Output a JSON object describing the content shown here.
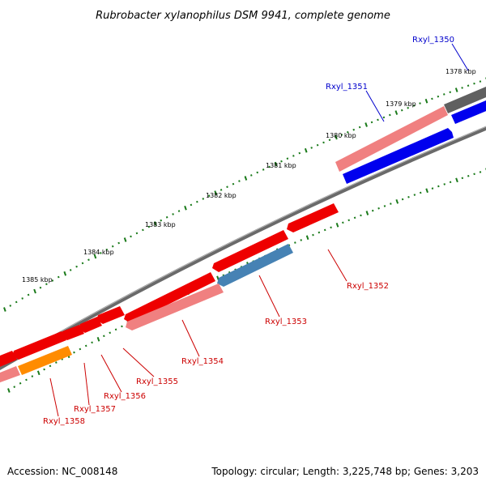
{
  "title": "Rubrobacter xylanophilus DSM 9941, complete genome",
  "footer": {
    "accession": "Accession: NC_008148",
    "summary": "Topology: circular; Length: 3,225,748 bp; Genes: 3,203"
  },
  "colors": {
    "backbone": "#707070",
    "tick": "#1a7a1a",
    "label_forward": "#0000cc",
    "label_reverse": "#cc0000"
  },
  "kbp_labels": [
    "1378 kbp",
    "1379 kbp",
    "1380 kbp",
    "1381 kbp",
    "1382 kbp",
    "1383 kbp",
    "1384 kbp",
    "1385 kbp"
  ],
  "genes": [
    {
      "id": "Rxyl_1350",
      "label": "Rxyl_1350",
      "strand": "+",
      "color": "#606060",
      "label_color": "#0000cc"
    },
    {
      "id": "Rxyl_1351",
      "label": "Rxyl_1351",
      "strand": "+",
      "color": "#0000ee",
      "label_color": "#0000cc"
    },
    {
      "id": "Rxyl_1352",
      "label": "Rxyl_1352",
      "strand": "-",
      "color": "#ee0000",
      "label_color": "#cc0000"
    },
    {
      "id": "Rxyl_1353",
      "label": "Rxyl_1353",
      "strand": "-",
      "color": "#4682b4",
      "label_color": "#cc0000"
    },
    {
      "id": "Rxyl_1354",
      "label": "Rxyl_1354",
      "strand": "-",
      "color": "#f08080",
      "label_color": "#cc0000"
    },
    {
      "id": "Rxyl_1355",
      "label": "Rxyl_1355",
      "strand": "-",
      "color": "#ee0000",
      "label_color": "#cc0000"
    },
    {
      "id": "Rxyl_1356",
      "label": "Rxyl_1356",
      "strand": "-",
      "color": "#ee0000",
      "label_color": "#cc0000"
    },
    {
      "id": "Rxyl_1357",
      "label": "Rxyl_1357",
      "strand": "-",
      "color": "#ee0000",
      "label_color": "#cc0000"
    },
    {
      "id": "Rxyl_1358",
      "label": "Rxyl_1358",
      "strand": "-",
      "color": "#ff8c00",
      "label_color": "#cc0000"
    }
  ]
}
